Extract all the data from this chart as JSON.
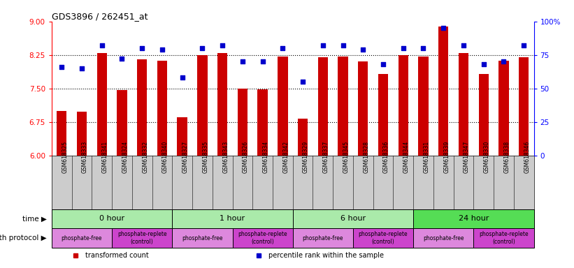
{
  "title": "GDS3896 / 262451_at",
  "samples": [
    "GSM618325",
    "GSM618333",
    "GSM618341",
    "GSM618324",
    "GSM618332",
    "GSM618340",
    "GSM618327",
    "GSM618335",
    "GSM618343",
    "GSM618326",
    "GSM618334",
    "GSM618342",
    "GSM618329",
    "GSM618337",
    "GSM618345",
    "GSM618328",
    "GSM618336",
    "GSM618344",
    "GSM618331",
    "GSM618339",
    "GSM618347",
    "GSM618330",
    "GSM618338",
    "GSM618346"
  ],
  "bar_values": [
    7.0,
    6.98,
    8.3,
    7.47,
    8.15,
    8.12,
    6.85,
    8.25,
    8.3,
    7.5,
    7.48,
    8.22,
    6.82,
    8.2,
    8.22,
    8.1,
    7.82,
    8.25,
    8.22,
    8.88,
    8.3,
    7.82,
    8.12,
    8.2
  ],
  "dot_values": [
    66,
    65,
    82,
    72,
    80,
    79,
    58,
    80,
    82,
    70,
    70,
    80,
    55,
    82,
    82,
    79,
    68,
    80,
    80,
    95,
    82,
    68,
    70,
    82
  ],
  "ylim_left": [
    6,
    9
  ],
  "ylim_right": [
    0,
    100
  ],
  "yticks_left": [
    6,
    6.75,
    7.5,
    8.25,
    9
  ],
  "yticks_right": [
    0,
    25,
    50,
    75,
    100
  ],
  "ytick_labels_right": [
    "0",
    "25",
    "50",
    "75",
    "100%"
  ],
  "hlines": [
    6.75,
    7.5,
    8.25
  ],
  "bar_color": "#cc0000",
  "dot_color": "#0000cc",
  "bar_width": 0.5,
  "time_groups": [
    {
      "label": "0 hour",
      "start": 0,
      "end": 6,
      "color": "#aaeaaa"
    },
    {
      "label": "1 hour",
      "start": 6,
      "end": 12,
      "color": "#aaeaaa"
    },
    {
      "label": "6 hour",
      "start": 12,
      "end": 18,
      "color": "#aaeaaa"
    },
    {
      "label": "24 hour",
      "start": 18,
      "end": 24,
      "color": "#55dd55"
    }
  ],
  "protocol_groups": [
    {
      "label": "phosphate-free",
      "start": 0,
      "end": 3,
      "color": "#dd88dd"
    },
    {
      "label": "phosphate-replete\n(control)",
      "start": 3,
      "end": 6,
      "color": "#cc44cc"
    },
    {
      "label": "phosphate-free",
      "start": 6,
      "end": 9,
      "color": "#dd88dd"
    },
    {
      "label": "phosphate-replete\n(control)",
      "start": 9,
      "end": 12,
      "color": "#cc44cc"
    },
    {
      "label": "phosphate-free",
      "start": 12,
      "end": 15,
      "color": "#dd88dd"
    },
    {
      "label": "phosphate-replete\n(control)",
      "start": 15,
      "end": 18,
      "color": "#cc44cc"
    },
    {
      "label": "phosphate-free",
      "start": 18,
      "end": 21,
      "color": "#dd88dd"
    },
    {
      "label": "phosphate-replete\n(control)",
      "start": 21,
      "end": 24,
      "color": "#cc44cc"
    }
  ],
  "xlabel_bg": "#cccccc",
  "legend_items": [
    {
      "label": "transformed count",
      "color": "#cc0000"
    },
    {
      "label": "percentile rank within the sample",
      "color": "#0000cc"
    }
  ]
}
